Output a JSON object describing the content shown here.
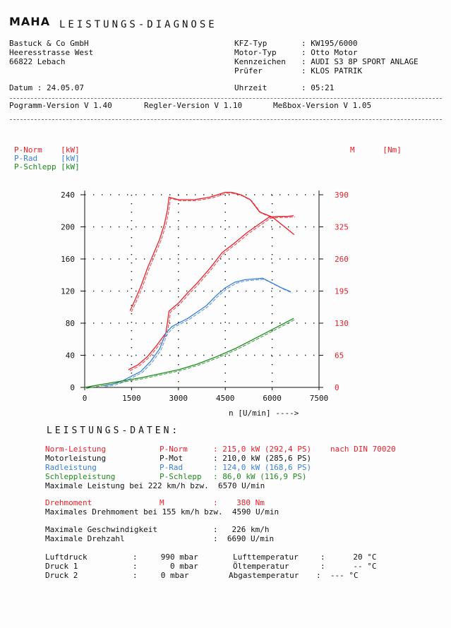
{
  "header": {
    "logo": "MAHA",
    "title": "LEISTUNGS-DIAGNOSE",
    "company": [
      "Bastuck & Co GmbH",
      "Heeresstrasse West",
      "66822 Lebach"
    ],
    "vehicle": [
      {
        "label": "KFZ-Typ",
        "value": "KW195/6000"
      },
      {
        "label": "Motor-Typ",
        "value": "Otto Motor"
      },
      {
        "label": "Kennzeichen",
        "value": "AUDI S3 8P SPORT ANLAGE"
      },
      {
        "label": "Prüfer",
        "value": "KLOS PATRIK"
      }
    ],
    "date_label": "Datum",
    "date": "24.05.07",
    "time_label": "Uhrzeit",
    "time": "05:21",
    "versions": [
      "Pogramm-Version V 1.40",
      "Regler-Version V 1.10",
      "Meßbox-Version V 1.05"
    ]
  },
  "chart_data": {
    "type": "line",
    "legend_left": [
      {
        "name": "P-Norm",
        "unit": "[kW]",
        "color": "#e8202a"
      },
      {
        "name": "P-Rad",
        "unit": "[kW]",
        "color": "#3a7fd8"
      },
      {
        "name": "P-Schlepp",
        "unit": "[kW]",
        "color": "#1d8a1d"
      }
    ],
    "legend_right": {
      "name": "M",
      "unit": "[Nm]",
      "color": "#e8202a"
    },
    "xlabel": "n [U/min] ---->",
    "xlim": [
      0,
      7500
    ],
    "x_ticks": [
      "0",
      "1500",
      "3000",
      "4500",
      "6000",
      "7500"
    ],
    "ylim_left": [
      0,
      240
    ],
    "y_ticks_left": [
      "0",
      "40",
      "80",
      "120",
      "160",
      "200",
      "240"
    ],
    "ylim_right": [
      0,
      390
    ],
    "y_ticks_right": [
      "0",
      "65",
      "130",
      "195",
      "260",
      "325",
      "390"
    ],
    "series": [
      {
        "name": "M",
        "axis": "right",
        "color": "#e8202a",
        "x": [
          1450,
          1600,
          1800,
          2000,
          2200,
          2400,
          2550,
          2650,
          2700,
          3000,
          3500,
          4000,
          4500,
          4700,
          5000,
          5300,
          5600,
          6000,
          6400,
          6690
        ],
        "y": [
          155,
          175,
          205,
          240,
          270,
          300,
          330,
          360,
          385,
          380,
          380,
          385,
          395,
          395,
          390,
          380,
          355,
          345,
          325,
          310
        ]
      },
      {
        "name": "P-Norm",
        "axis": "left",
        "color": "#e8202a",
        "x": [
          1400,
          1700,
          2000,
          2300,
          2600,
          2700,
          3000,
          3300,
          3600,
          4000,
          4400,
          4800,
          5200,
          5600,
          5900,
          6200,
          6500,
          6690
        ],
        "y": [
          22,
          28,
          38,
          52,
          68,
          95,
          105,
          118,
          130,
          148,
          168,
          180,
          193,
          204,
          212,
          213,
          213,
          214
        ]
      },
      {
        "name": "P-Rad",
        "axis": "left",
        "color": "#3a7fd8",
        "x": [
          600,
          900,
          1200,
          1500,
          1800,
          2100,
          2400,
          2600,
          2800,
          3000,
          3300,
          3600,
          3900,
          4200,
          4500,
          4800,
          5100,
          5400,
          5700,
          6000,
          6300,
          6600
        ],
        "y": [
          2,
          4,
          8,
          14,
          20,
          32,
          48,
          68,
          76,
          80,
          86,
          94,
          102,
          114,
          124,
          131,
          134,
          135,
          136,
          130,
          124,
          119
        ]
      },
      {
        "name": "P-Schlepp",
        "axis": "left",
        "color": "#1d8a1d",
        "x": [
          0,
          600,
          1200,
          1800,
          2400,
          3000,
          3600,
          4200,
          4800,
          5400,
          6000,
          6690
        ],
        "y": [
          0,
          4,
          8,
          12,
          17,
          22,
          29,
          38,
          48,
          60,
          72,
          86
        ]
      }
    ]
  },
  "results": {
    "title": "LEISTUNGS-DATEN:",
    "rows": [
      {
        "label": "Norm-Leistung",
        "code": "P-Norm",
        "value": ": 215,0 kW (292,4 PS)",
        "extra": "nach DIN 70020",
        "color": "#e8202a"
      },
      {
        "label": "Motorleistung",
        "code": "P-Mot",
        "value": ": 210,0 kW (285,6 PS)",
        "extra": "",
        "color": "#111111"
      },
      {
        "label": "Radleistung",
        "code": "P-Rad",
        "value": ": 124,0 kW (168,6 PS)",
        "extra": "",
        "color": "#3a7fd8"
      },
      {
        "label": "Schleppleistung",
        "code": "P-Schlepp",
        "value": ": 86,0 kW (116,9 PS)",
        "extra": "",
        "color": "#1d8a1d"
      }
    ],
    "max_power_line": "Maximale Leistung bei 222 km/h bzw.  6570 U/min",
    "torque": {
      "label": "Drehmoment",
      "code": "M",
      "value": ":    380 Nm",
      "color": "#e8202a"
    },
    "max_torque_line": "Maximales Drehmoment bei 155 km/h bzw.  4590 U/min",
    "max_speed": {
      "label": "Maximale Geschwindigkeit",
      "value": ":   226 km/h"
    },
    "max_rpm": {
      "label": "Maximale Drehzahl",
      "value": ":  6690 U/min"
    },
    "ambient": [
      {
        "label": "Luftdruck",
        "value": ":     990 mbar",
        "label2": "Lufttemperatur",
        "value2": ":      20 °C"
      },
      {
        "label": "Druck 1",
        "value": ":       0 mbar",
        "label2": "Öltemperatur",
        "value2": ":      -- °C"
      },
      {
        "label": "Druck 2",
        "value": ":     0 mbar",
        "label2": "Abgastemperatur",
        "value2": ":  --- °C"
      }
    ]
  }
}
